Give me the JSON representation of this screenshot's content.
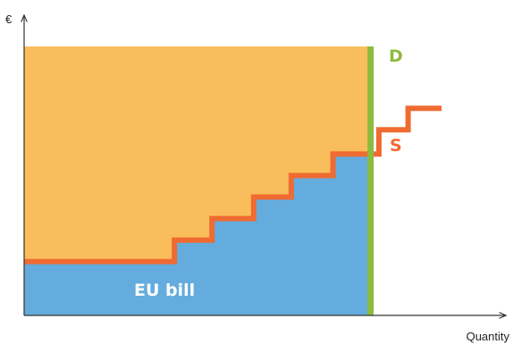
{
  "chart_data": {
    "type": "area",
    "ylabel": "€",
    "xlabel": "Quantity",
    "xlim": [
      0,
      10
    ],
    "ylim": [
      0,
      10
    ],
    "demand": {
      "name": "D",
      "x": 8.3
    },
    "supply": {
      "name": "S",
      "steps": [
        {
          "x0": 0.0,
          "x1": 3.6,
          "y": 2.0
        },
        {
          "x0": 3.6,
          "x1": 4.5,
          "y": 2.8
        },
        {
          "x0": 4.5,
          "x1": 5.5,
          "y": 3.6
        },
        {
          "x0": 5.5,
          "x1": 6.4,
          "y": 4.4
        },
        {
          "x0": 6.4,
          "x1": 7.4,
          "y": 5.2
        },
        {
          "x0": 7.4,
          "x1": 8.5,
          "y": 6.0
        },
        {
          "x0": 8.5,
          "x1": 9.2,
          "y": 6.9
        },
        {
          "x0": 9.2,
          "x1": 10.0,
          "y": 7.7
        }
      ]
    },
    "price_level": 10.0,
    "area_label": "EU bill",
    "colors": {
      "upper_area": "#F9BE5B",
      "lower_area": "#64ACDD",
      "supply": "#EF6B32",
      "demand": "#8DBB3E",
      "axis": "#333333"
    },
    "grid": false,
    "legend": "none"
  }
}
